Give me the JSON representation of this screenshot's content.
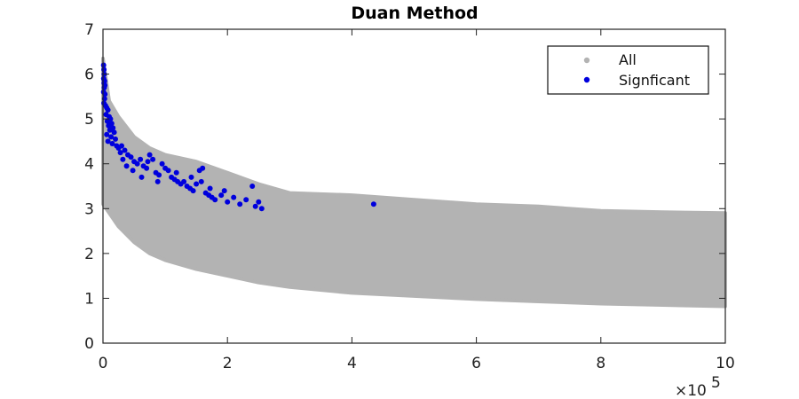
{
  "chart_data": {
    "type": "scatter",
    "title": "Duan Method",
    "xlabel": "",
    "ylabel": "",
    "xlim": [
      0,
      1000000
    ],
    "ylim": [
      0,
      7
    ],
    "x_ticks": [
      0,
      200000,
      400000,
      600000,
      800000,
      1000000
    ],
    "x_tick_labels": [
      "0",
      "2",
      "4",
      "6",
      "8",
      "10"
    ],
    "x_exponent_label": "×10",
    "x_exponent_power": "5",
    "y_ticks": [
      0,
      1,
      2,
      3,
      4,
      5,
      6,
      7
    ],
    "y_tick_labels": [
      "0",
      "1",
      "2",
      "3",
      "4",
      "5",
      "6",
      "7"
    ],
    "grid": false,
    "legend": {
      "placement": "top-right"
    },
    "series": [
      {
        "name": "All",
        "color": "#b3b3b3",
        "description_band": {
          "x": [
            0,
            10000,
            25000,
            50000,
            75000,
            100000,
            150000,
            200000,
            250000,
            300000,
            400000,
            500000,
            600000,
            700000,
            800000,
            900000,
            1000000
          ],
          "y_upper": [
            6.35,
            5.4,
            5.05,
            4.6,
            4.35,
            4.2,
            4.05,
            3.8,
            3.55,
            3.35,
            3.3,
            3.2,
            3.1,
            3.05,
            2.95,
            2.92,
            2.9
          ],
          "y_lower": [
            3.1,
            2.9,
            2.6,
            2.25,
            2.0,
            1.85,
            1.65,
            1.5,
            1.35,
            1.25,
            1.12,
            1.05,
            0.98,
            0.93,
            0.88,
            0.85,
            0.82
          ]
        }
      },
      {
        "name": "Signficant",
        "color": "#0000dd",
        "points": [
          [
            1000,
            6.2
          ],
          [
            1500,
            6.1
          ],
          [
            2000,
            6.0
          ],
          [
            1200,
            5.9
          ],
          [
            2500,
            5.85
          ],
          [
            1800,
            5.8
          ],
          [
            3000,
            5.75
          ],
          [
            2200,
            5.7
          ],
          [
            1000,
            5.6
          ],
          [
            3200,
            5.55
          ],
          [
            2600,
            5.45
          ],
          [
            1500,
            5.35
          ],
          [
            4000,
            5.3
          ],
          [
            6000,
            5.25
          ],
          [
            8000,
            5.2
          ],
          [
            5000,
            5.1
          ],
          [
            10000,
            5.05
          ],
          [
            12000,
            5.0
          ],
          [
            7000,
            4.95
          ],
          [
            14000,
            4.9
          ],
          [
            9000,
            4.85
          ],
          [
            16000,
            4.8
          ],
          [
            11000,
            4.75
          ],
          [
            18000,
            4.7
          ],
          [
            6000,
            4.65
          ],
          [
            13000,
            4.6
          ],
          [
            20000,
            4.55
          ],
          [
            8000,
            4.5
          ],
          [
            15000,
            4.45
          ],
          [
            22000,
            4.4
          ],
          [
            25000,
            4.35
          ],
          [
            30000,
            4.4
          ],
          [
            35000,
            4.3
          ],
          [
            28000,
            4.25
          ],
          [
            40000,
            4.2
          ],
          [
            45000,
            4.15
          ],
          [
            32000,
            4.1
          ],
          [
            50000,
            4.05
          ],
          [
            55000,
            4.0
          ],
          [
            60000,
            4.1
          ],
          [
            65000,
            3.95
          ],
          [
            70000,
            3.9
          ],
          [
            38000,
            3.95
          ],
          [
            48000,
            3.85
          ],
          [
            75000,
            4.2
          ],
          [
            80000,
            4.1
          ],
          [
            85000,
            3.8
          ],
          [
            90000,
            3.75
          ],
          [
            62000,
            3.7
          ],
          [
            95000,
            4.0
          ],
          [
            100000,
            3.9
          ],
          [
            105000,
            3.85
          ],
          [
            110000,
            3.7
          ],
          [
            115000,
            3.65
          ],
          [
            120000,
            3.6
          ],
          [
            125000,
            3.55
          ],
          [
            130000,
            3.6
          ],
          [
            135000,
            3.5
          ],
          [
            140000,
            3.45
          ],
          [
            145000,
            3.4
          ],
          [
            150000,
            3.55
          ],
          [
            155000,
            3.85
          ],
          [
            160000,
            3.9
          ],
          [
            165000,
            3.35
          ],
          [
            170000,
            3.3
          ],
          [
            175000,
            3.25
          ],
          [
            180000,
            3.2
          ],
          [
            190000,
            3.3
          ],
          [
            200000,
            3.15
          ],
          [
            210000,
            3.25
          ],
          [
            220000,
            3.1
          ],
          [
            230000,
            3.2
          ],
          [
            240000,
            3.5
          ],
          [
            245000,
            3.05
          ],
          [
            250000,
            3.15
          ],
          [
            255000,
            3.0
          ],
          [
            435000,
            3.1
          ],
          [
            72000,
            4.05
          ],
          [
            88000,
            3.6
          ],
          [
            118000,
            3.8
          ],
          [
            142000,
            3.7
          ],
          [
            158000,
            3.6
          ],
          [
            172000,
            3.45
          ],
          [
            195000,
            3.4
          ]
        ]
      }
    ]
  },
  "legend": {
    "items": [
      {
        "label": "All",
        "color": "#b3b3b3"
      },
      {
        "label": "Signficant",
        "color": "#0000dd"
      }
    ]
  }
}
